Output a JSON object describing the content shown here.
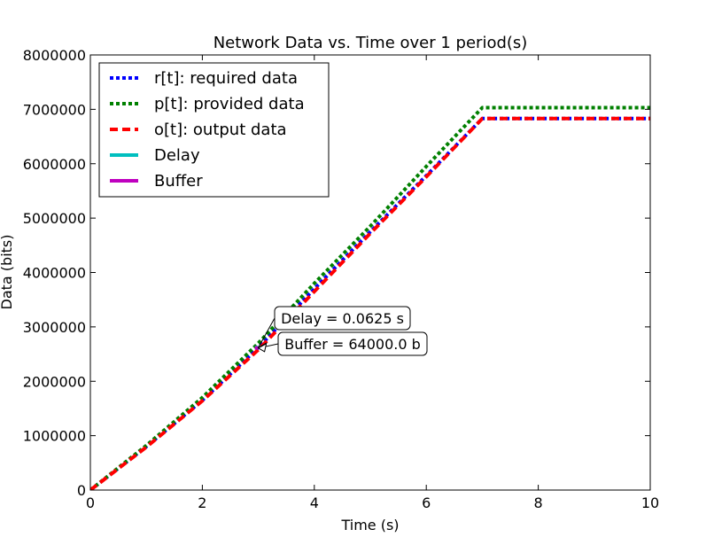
{
  "chart_data": {
    "type": "line",
    "title": "Network Data vs. Time over 1 period(s)",
    "xlabel": "Time (s)",
    "ylabel": "Data (bits)",
    "xlim": [
      0,
      10
    ],
    "ylim": [
      0,
      8000000
    ],
    "xticks": [
      0,
      2,
      4,
      6,
      8,
      10
    ],
    "yticks": [
      0,
      1000000,
      2000000,
      3000000,
      4000000,
      5000000,
      6000000,
      7000000,
      8000000
    ],
    "xtick_labels": [
      "0",
      "2",
      "4",
      "6",
      "8",
      "10"
    ],
    "ytick_labels": [
      "0",
      "1000000",
      "2000000",
      "3000000",
      "4000000",
      "5000000",
      "6000000",
      "7000000",
      "8000000"
    ],
    "grid": false,
    "legend_position": "upper-left",
    "series": [
      {
        "name": "r[t]: required data",
        "color": "#0000ff",
        "style": "dotted",
        "x": [
          0,
          1,
          2,
          3,
          4,
          5,
          6,
          7,
          10
        ],
        "y": [
          0,
          800000,
          1650000,
          2620000,
          3700000,
          4750000,
          5780000,
          6830000,
          6830000
        ]
      },
      {
        "name": "p[t]: provided data",
        "color": "#008000",
        "style": "dotted",
        "x": [
          0,
          1,
          2,
          3,
          4,
          5,
          6,
          7,
          10
        ],
        "y": [
          0,
          820000,
          1700000,
          2700000,
          3800000,
          4850000,
          5950000,
          7030000,
          7030000
        ]
      },
      {
        "name": "o[t]: output data",
        "color": "#ff0000",
        "style": "dashed",
        "x": [
          0,
          1,
          2,
          3,
          4,
          5,
          6,
          7,
          10
        ],
        "y": [
          0,
          790000,
          1640000,
          2580000,
          3650000,
          4720000,
          5760000,
          6830000,
          6830000
        ]
      },
      {
        "name": "Delay",
        "color": "#00bfbf",
        "style": "solid",
        "x": [
          2.94,
          3.0025
        ],
        "y": [
          2620000,
          2620000
        ]
      },
      {
        "name": "Buffer",
        "color": "#bf00bf",
        "style": "solid",
        "x": [
          2.97,
          2.97
        ],
        "y": [
          2580000,
          2644000
        ]
      }
    ],
    "annotations": [
      {
        "text": "Delay = 0.0625 s",
        "x": 3.0,
        "y": 2620000
      },
      {
        "text": "Buffer = 64000.0 b",
        "x": 3.0,
        "y": 2610000
      }
    ]
  }
}
